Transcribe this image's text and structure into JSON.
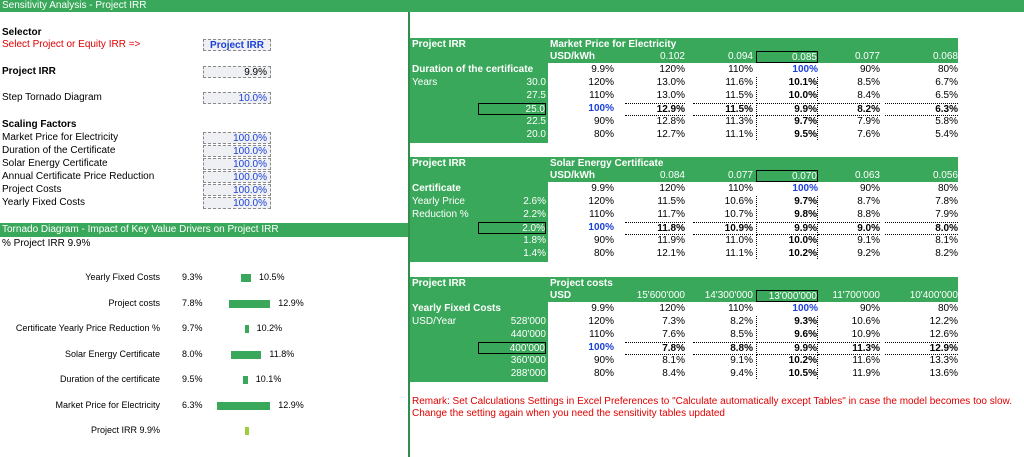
{
  "title": "Sensitivity Analysis - Project IRR",
  "selector": {
    "heading": "Selector",
    "prompt": "Select Project or Equity IRR =>",
    "value": "Project IRR"
  },
  "project_irr": {
    "label": "Project IRR",
    "value": "9.9%"
  },
  "step": {
    "label": "Step Tornado Diagram",
    "value": "10.0%"
  },
  "scaling": {
    "heading": "Scaling Factors",
    "items": [
      {
        "label": "Market Price for Electricity",
        "value": "100.0%"
      },
      {
        "label": "Duration of the Certificate",
        "value": "100.0%"
      },
      {
        "label": "Solar Energy Certificate",
        "value": "100.0%"
      },
      {
        "label": "Annual Certificate Price Reduction",
        "value": "100.0%"
      },
      {
        "label": "Project Costs",
        "value": "100.0%"
      },
      {
        "label": "Yearly Fixed Costs",
        "value": "100.0%"
      }
    ]
  },
  "tornado": {
    "bar_title": "Tornado Diagram - Impact of Key Value Drivers on Project IRR",
    "subtitle": "% Project IRR 9.9%",
    "rows": [
      {
        "label": "Yearly Fixed Costs",
        "low": "9.3%",
        "high": "10.5%",
        "low_v": 9.3,
        "high_v": 10.5
      },
      {
        "label": "Project costs",
        "low": "7.8%",
        "high": "12.9%",
        "low_v": 7.8,
        "high_v": 12.9
      },
      {
        "label": "Certificate  Yearly Price Reduction %",
        "low": "9.7%",
        "high": "10.2%",
        "low_v": 9.7,
        "high_v": 10.2
      },
      {
        "label": "Solar Energy Certificate",
        "low": "8.0%",
        "high": "11.8%",
        "low_v": 8.0,
        "high_v": 11.8
      },
      {
        "label": "Duration of the certificate",
        "low": "9.5%",
        "high": "10.1%",
        "low_v": 9.5,
        "high_v": 10.1
      },
      {
        "label": "Market Price for Electricity",
        "low": "6.3%",
        "high": "12.9%",
        "low_v": 6.3,
        "high_v": 12.9
      },
      {
        "label": "Project IRR 9.9%",
        "low": "",
        "high": "",
        "low_v": 9.8,
        "high_v": 10.0
      }
    ]
  },
  "tables": [
    {
      "name": "Project IRR",
      "driver": "Market Price for Electricity",
      "unit": "USD/kWh",
      "col_vals": [
        "0.102",
        "0.094",
        "0.085",
        "0.077",
        "0.068"
      ],
      "row_title": "Duration of the certificate",
      "row_unit": "Years",
      "row_title2": "",
      "corner": "9.9%",
      "col_pcts": [
        "120%",
        "110%",
        "100%",
        "90%",
        "80%"
      ],
      "rows": [
        {
          "val": "30.0",
          "pct": "120%",
          "cells": [
            "13.0%",
            "11.6%",
            "10.1%",
            "8.5%",
            "6.7%"
          ]
        },
        {
          "val": "27.5",
          "pct": "110%",
          "cells": [
            "13.0%",
            "11.5%",
            "10.0%",
            "8.4%",
            "6.5%"
          ]
        },
        {
          "val": "25.0",
          "pct": "100%",
          "cells": [
            "12.9%",
            "11.5%",
            "9.9%",
            "8.2%",
            "6.3%"
          ]
        },
        {
          "val": "22.5",
          "pct": "90%",
          "cells": [
            "12.8%",
            "11.3%",
            "9.7%",
            "7.9%",
            "5.8%"
          ]
        },
        {
          "val": "20.0",
          "pct": "80%",
          "cells": [
            "12.7%",
            "11.1%",
            "9.5%",
            "7.6%",
            "5.4%"
          ]
        }
      ]
    },
    {
      "name": "Project IRR",
      "driver": "Solar Energy Certificate",
      "unit": "USD/kWh",
      "col_vals": [
        "0.084",
        "0.077",
        "0.070",
        "0.063",
        "0.056"
      ],
      "row_title": "Certificate",
      "row_unit": "Yearly Price",
      "row_title2": "Reduction %",
      "corner": "9.9%",
      "col_pcts": [
        "120%",
        "110%",
        "100%",
        "90%",
        "80%"
      ],
      "rows": [
        {
          "val": "2.6%",
          "pct": "120%",
          "cells": [
            "11.5%",
            "10.6%",
            "9.7%",
            "8.7%",
            "7.8%"
          ]
        },
        {
          "val": "2.2%",
          "pct": "110%",
          "cells": [
            "11.7%",
            "10.7%",
            "9.8%",
            "8.8%",
            "7.9%"
          ]
        },
        {
          "val": "2.0%",
          "pct": "100%",
          "cells": [
            "11.8%",
            "10.9%",
            "9.9%",
            "9.0%",
            "8.0%"
          ]
        },
        {
          "val": "1.8%",
          "pct": "90%",
          "cells": [
            "11.9%",
            "11.0%",
            "10.0%",
            "9.1%",
            "8.1%"
          ]
        },
        {
          "val": "1.4%",
          "pct": "80%",
          "cells": [
            "12.1%",
            "11.1%",
            "10.2%",
            "9.2%",
            "8.2%"
          ]
        }
      ]
    },
    {
      "name": "Project IRR",
      "driver": "Project costs",
      "unit": "USD",
      "col_vals": [
        "15'600'000",
        "14'300'000",
        "13'000'000",
        "11'700'000",
        "10'400'000"
      ],
      "row_title": "Yearly Fixed Costs",
      "row_unit": "USD/Year",
      "row_title2": "",
      "corner": "9.9%",
      "col_pcts": [
        "120%",
        "110%",
        "100%",
        "90%",
        "80%"
      ],
      "rows": [
        {
          "val": "528'000",
          "pct": "120%",
          "cells": [
            "7.3%",
            "8.2%",
            "9.3%",
            "10.6%",
            "12.2%"
          ]
        },
        {
          "val": "440'000",
          "pct": "110%",
          "cells": [
            "7.6%",
            "8.5%",
            "9.6%",
            "10.9%",
            "12.6%"
          ]
        },
        {
          "val": "400'000",
          "pct": "100%",
          "cells": [
            "7.8%",
            "8.8%",
            "9.9%",
            "11.3%",
            "12.9%"
          ]
        },
        {
          "val": "360'000",
          "pct": "90%",
          "cells": [
            "8.1%",
            "9.1%",
            "10.2%",
            "11.6%",
            "13.3%"
          ]
        },
        {
          "val": "288'000",
          "pct": "80%",
          "cells": [
            "8.4%",
            "9.4%",
            "10.5%",
            "11.9%",
            "13.6%"
          ]
        }
      ]
    }
  ],
  "remark": "Remark: Set Calculations Settings in Excel Preferences to \"Calculate automatically except Tables\" in case the model becomes too slow. Change the setting again when you need the sensitivity tables updated",
  "colors": {
    "green": "#3aa85a",
    "blue": "#1a3fd8",
    "red": "#e00000"
  }
}
